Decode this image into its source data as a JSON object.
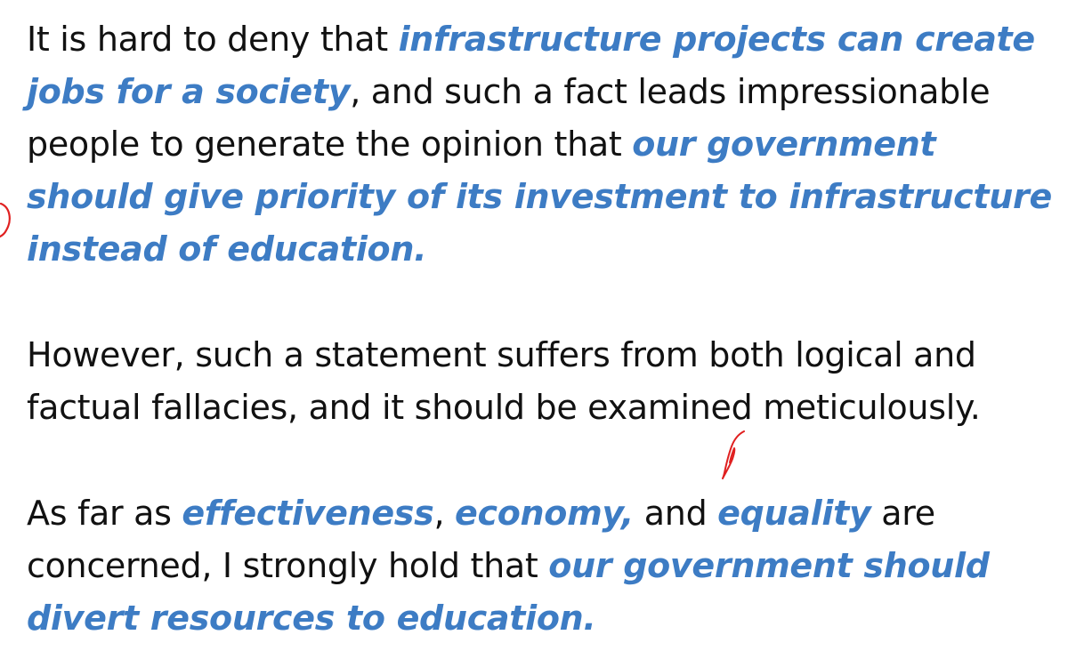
{
  "colors": {
    "text": "#111111",
    "highlight": "#3d7cc4",
    "annotation_ink": "#e02020",
    "background": "#ffffff"
  },
  "paragraph_1": {
    "lead": "It is hard to deny that ",
    "highlight_1": "infrastructure projects can create jobs for a society",
    "middle": ", and such a fact leads impressionable people to generate the opinion that ",
    "highlight_2": "our government should give priority of its investment to infrastructure instead of education."
  },
  "paragraph_2": {
    "text": "However, such a statement suffers from both logical and factual fallacies, and it should be examined meticulously."
  },
  "paragraph_3": {
    "lead": "As far as ",
    "highlight_1": "effectiveness",
    "sep_1": ", ",
    "highlight_2": "economy,",
    "sep_2": " and ",
    "highlight_3": "equality",
    "middle": " are concerned, I strongly hold that ",
    "highlight_4": "our government should divert resources to education."
  }
}
